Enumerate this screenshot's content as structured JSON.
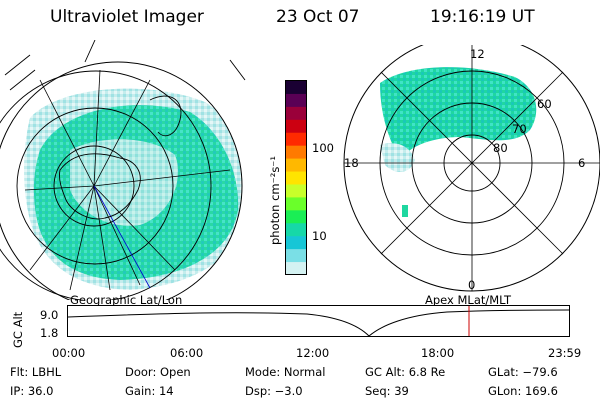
{
  "header": {
    "instrument": "Ultraviolet Imager",
    "date": "23 Oct 07",
    "time": "19:16:19 UT"
  },
  "geo_panel": {
    "label": "Geographic Lat/Lon"
  },
  "colorbar": {
    "unit_label": "photon cm⁻²s⁻¹",
    "ticks": [
      "100",
      "10"
    ],
    "colors": [
      "#1a0033",
      "#5a0055",
      "#9a003a",
      "#cc0011",
      "#ff2a00",
      "#ff7a00",
      "#ffb800",
      "#ffe400",
      "#c8ff2a",
      "#6aff2a",
      "#1aee55",
      "#16d8a8",
      "#16c6d6",
      "#7adfe6",
      "#d4f2f2"
    ]
  },
  "polar_panel": {
    "label": "Apex MLat/MLT",
    "mlt_labels": {
      "top": "12",
      "left": "18",
      "right": "6",
      "bottom": "0"
    },
    "lat_labels": [
      "60",
      "70",
      "80"
    ]
  },
  "altitude_strip": {
    "ylabel": "GC Alt",
    "yticks": [
      "9.0",
      "1.8"
    ],
    "xticks": [
      "00:00",
      "06:00",
      "12:00",
      "18:00",
      "23:59"
    ],
    "marker_color": "#cc0000"
  },
  "info": {
    "filter": "Flt: LBHL",
    "door": "Door: Open",
    "mode": "Mode: Normal",
    "gc_alt": "GC Alt: 6.8 Re",
    "glat": "GLat: −79.6",
    "ip": "IP: 36.0",
    "gain": "Gain: 14",
    "dsp": "Dsp:  −3.0",
    "seq": "Seq: 39",
    "glon": "GLon: 169.6"
  }
}
